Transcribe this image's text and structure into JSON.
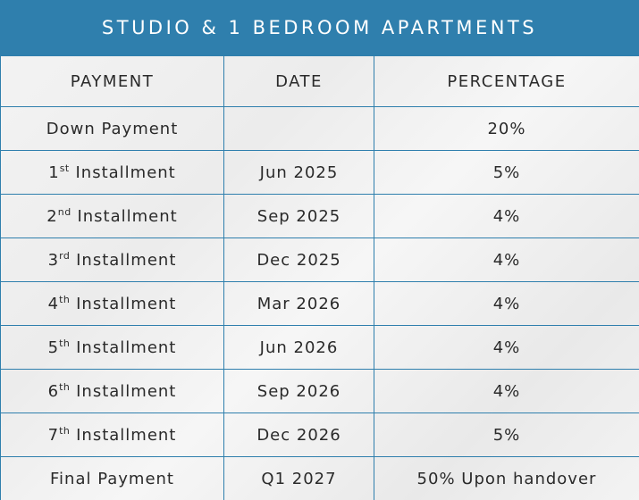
{
  "title": "STUDIO & 1 BEDROOM APARTMENTS",
  "columns": {
    "payment": "PAYMENT",
    "date": "DATE",
    "percentage": "PERCENTAGE"
  },
  "rows": [
    {
      "num": "Down Payment",
      "sup": "",
      "suffix": "",
      "date": "",
      "percentage": "20%"
    },
    {
      "num": "1",
      "sup": "st",
      "suffix": " Installment",
      "date": "Jun 2025",
      "percentage": "5%"
    },
    {
      "num": "2",
      "sup": "nd",
      "suffix": " Installment",
      "date": "Sep 2025",
      "percentage": "4%"
    },
    {
      "num": "3",
      "sup": "rd",
      "suffix": " Installment",
      "date": "Dec 2025",
      "percentage": "4%"
    },
    {
      "num": "4",
      "sup": "th",
      "suffix": " Installment",
      "date": "Mar 2026",
      "percentage": "4%"
    },
    {
      "num": "5",
      "sup": "th",
      "suffix": " Installment",
      "date": "Jun 2026",
      "percentage": "4%"
    },
    {
      "num": "6",
      "sup": "th",
      "suffix": " Installment",
      "date": "Sep 2026",
      "percentage": "4%"
    },
    {
      "num": "7",
      "sup": "th",
      "suffix": " Installment",
      "date": "Dec 2026",
      "percentage": "5%"
    },
    {
      "num": "Final Payment",
      "sup": "",
      "suffix": "",
      "date": "Q1 2027",
      "percentage": "50% Upon handover"
    }
  ],
  "colors": {
    "header_bg": "#2f7fad",
    "border": "#2f7fad"
  }
}
